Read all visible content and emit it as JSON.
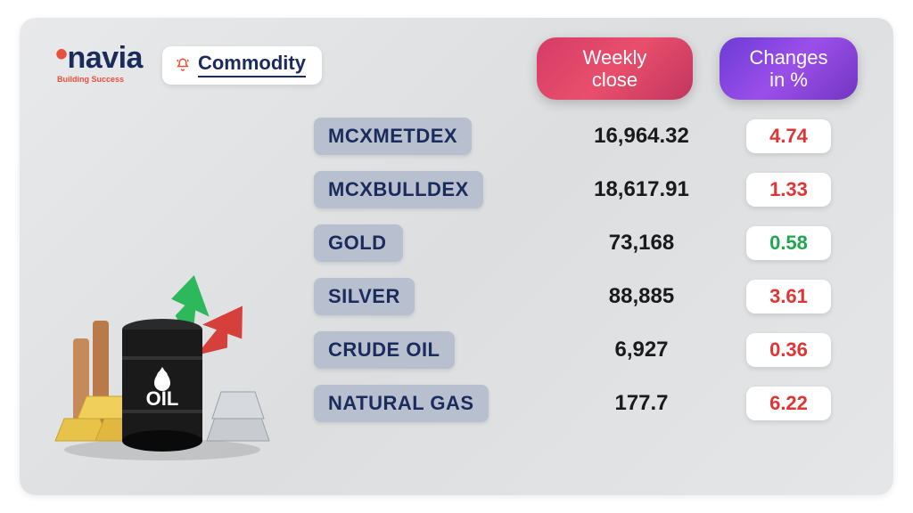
{
  "brand": {
    "name": "navia",
    "tagline": "Building Success"
  },
  "badge": {
    "label": "Commodity",
    "icon": "bell-icon"
  },
  "headers": {
    "close": "Weekly close",
    "change": "Changes in %"
  },
  "colors": {
    "card_bg_from": "#e8e9eb",
    "card_bg_to": "#e5e6e8",
    "brand_navy": "#1a2b5c",
    "brand_accent": "#e94f3b",
    "pill_close_from": "#d63b6a",
    "pill_close_to": "#c23560",
    "pill_change_from": "#6d3bd6",
    "pill_change_to": "#7235c2",
    "chip_bg": "#b8c0d0",
    "negative": "#e03535",
    "positive": "#1da84f",
    "white": "#ffffff"
  },
  "rows": [
    {
      "name": "MCXMETDEX",
      "close": "16,964.32",
      "change": "4.74",
      "direction": "neg"
    },
    {
      "name": "MCXBULLDEX",
      "close": "18,617.91",
      "change": "1.33",
      "direction": "neg"
    },
    {
      "name": "GOLD",
      "close": "73,168",
      "change": "0.58",
      "direction": "pos"
    },
    {
      "name": "SILVER",
      "close": "88,885",
      "change": "3.61",
      "direction": "neg"
    },
    {
      "name": "CRUDE OIL",
      "close": "6,927",
      "change": "0.36",
      "direction": "neg"
    },
    {
      "name": "NATURAL GAS",
      "close": "177.7",
      "change": "6.22",
      "direction": "neg"
    }
  ],
  "illustration": {
    "description": "Commodity composite: oil barrel, gold bars, silver stacks, copper pipes, green up arrow, red down arrow",
    "arrow_up_color": "#2eb85c",
    "arrow_down_color": "#d6403b",
    "barrel_color": "#1a1a1a",
    "barrel_label": "OIL",
    "gold_color": "#e8c34a",
    "silver_color": "#c8ccd0",
    "copper_color": "#c68a5a"
  }
}
